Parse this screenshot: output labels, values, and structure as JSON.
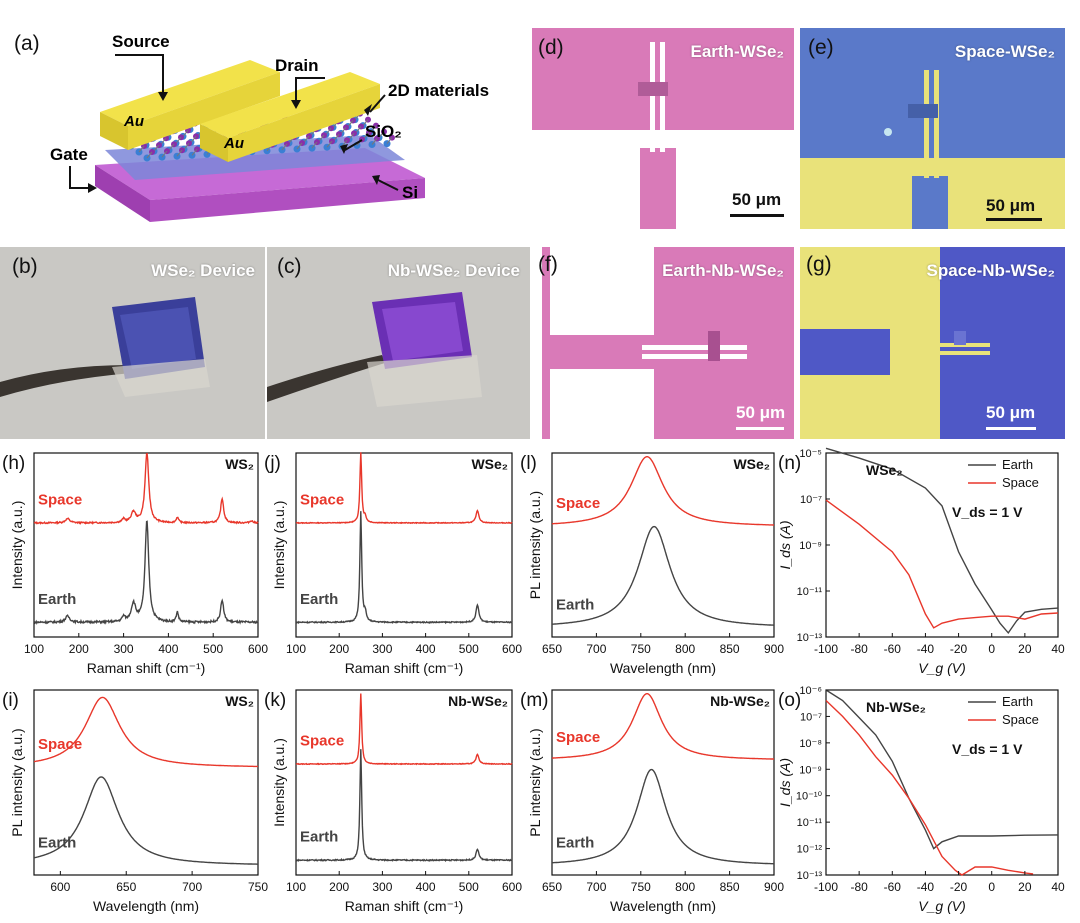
{
  "schematic": {
    "panel_label": "(a)",
    "source": "Source",
    "drain": "Drain",
    "gate": "Gate",
    "au1": "Au",
    "au2": "Au",
    "material": "2D materials",
    "sio2": "SiO₂",
    "si": "Si"
  },
  "photos": {
    "b": {
      "label": "(b)",
      "title": "WSe₂ Device"
    },
    "c": {
      "label": "(c)",
      "title": "Nb-WSe₂ Device"
    }
  },
  "micrographs": {
    "d": {
      "label": "(d)",
      "title": "Earth-WSe₂",
      "scale": "50 μm"
    },
    "e": {
      "label": "(e)",
      "title": "Space-WSe₂",
      "scale": "50 μm"
    },
    "f": {
      "label": "(f)",
      "title": "Earth-Nb-WSe₂",
      "scale": "50 μm"
    },
    "g": {
      "label": "(g)",
      "title": "Space-Nb-WSe₂",
      "scale": "50 μm"
    }
  },
  "colors": {
    "earth": "#444444",
    "space": "#e8372b",
    "gold": "#f2e24a",
    "purple": "#b857d4",
    "pink": "#d97ab8",
    "blue": "#4f58c6"
  },
  "chart_data": [
    {
      "id": "h",
      "label": "(h)",
      "type": "line",
      "title": "WS₂",
      "xlabel": "Raman shift (cm⁻¹)",
      "ylabel": "Intensity (a.u.)",
      "xlim": [
        100,
        600
      ],
      "xticks": [
        "100",
        "200",
        "300",
        "400",
        "500",
        "600"
      ],
      "series": [
        {
          "name": "Space",
          "offset": 0.62,
          "scale": 0.38,
          "noise": 0.02,
          "peaks": [
            [
              175,
              0.06,
              6
            ],
            [
              300,
              0.05,
              4
            ],
            [
              322,
              0.15,
              6
            ],
            [
              352,
              1.0,
              5
            ],
            [
              420,
              0.08,
              3
            ],
            [
              520,
              0.35,
              4
            ],
            [
              585,
              0.03,
              4
            ]
          ]
        },
        {
          "name": "Earth",
          "offset": 0.08,
          "scale": 0.55,
          "noise": 0.02,
          "peaks": [
            [
              175,
              0.06,
              6
            ],
            [
              300,
              0.05,
              4
            ],
            [
              322,
              0.18,
              6
            ],
            [
              352,
              1.0,
              5
            ],
            [
              420,
              0.1,
              3
            ],
            [
              520,
              0.22,
              4
            ]
          ]
        }
      ]
    },
    {
      "id": "j",
      "label": "(j)",
      "type": "line",
      "title": "WSe₂",
      "xlabel": "Raman shift (cm⁻¹)",
      "ylabel": "Intensity (a.u.)",
      "xlim": [
        100,
        600
      ],
      "xticks": [
        "100",
        "200",
        "300",
        "400",
        "500",
        "600"
      ],
      "series": [
        {
          "name": "Space",
          "offset": 0.62,
          "scale": 0.38,
          "noise": 0.01,
          "peaks": [
            [
              250,
              1.0,
              2.5
            ],
            [
              260,
              0.08,
              3
            ],
            [
              520,
              0.18,
              4
            ]
          ]
        },
        {
          "name": "Earth",
          "offset": 0.08,
          "scale": 0.6,
          "noise": 0.01,
          "peaks": [
            [
              250,
              1.0,
              2.5
            ],
            [
              260,
              0.08,
              3
            ],
            [
              520,
              0.16,
              4
            ]
          ]
        }
      ]
    },
    {
      "id": "l",
      "label": "(l)",
      "type": "line",
      "title": "WSe₂",
      "xlabel": "Wavelength (nm)",
      "ylabel": "PL intensity (a.u.)",
      "xlim": [
        650,
        900
      ],
      "xticks": [
        "650",
        "700",
        "750",
        "800",
        "850",
        "900"
      ],
      "series": [
        {
          "name": "Space",
          "offset": 0.6,
          "scale": 0.38,
          "noise": 0,
          "peaks": [
            [
              757,
              1.0,
              22
            ]
          ]
        },
        {
          "name": "Earth",
          "offset": 0.05,
          "scale": 0.55,
          "noise": 0,
          "peaks": [
            [
              765,
              1.0,
              22
            ]
          ]
        }
      ]
    },
    {
      "id": "i",
      "label": "(i)",
      "type": "line",
      "title": "WS₂",
      "xlabel": "Wavelength (nm)",
      "ylabel": "PL intensity (a.u.)",
      "xlim": [
        580,
        750
      ],
      "xticks": [
        "600",
        "650",
        "700",
        "750"
      ],
      "series": [
        {
          "name": "Space",
          "offset": 0.58,
          "scale": 0.38,
          "noise": 0,
          "peaks": [
            [
              632,
              1.0,
              16
            ]
          ]
        },
        {
          "name": "Earth",
          "offset": 0.05,
          "scale": 0.48,
          "noise": 0,
          "peaks": [
            [
              631,
              1.0,
              16
            ]
          ]
        }
      ]
    },
    {
      "id": "k",
      "label": "(k)",
      "type": "line",
      "title": "Nb-WSe₂",
      "xlabel": "Raman shift (cm⁻¹)",
      "ylabel": "Intensity (a.u.)",
      "xlim": [
        100,
        600
      ],
      "xticks": [
        "100",
        "200",
        "300",
        "400",
        "500",
        "600"
      ],
      "series": [
        {
          "name": "Space",
          "offset": 0.6,
          "scale": 0.38,
          "noise": 0.01,
          "peaks": [
            [
              250,
              1.0,
              2.5
            ],
            [
              520,
              0.14,
              4
            ]
          ]
        },
        {
          "name": "Earth",
          "offset": 0.08,
          "scale": 0.6,
          "noise": 0.01,
          "peaks": [
            [
              250,
              1.0,
              2.5
            ],
            [
              520,
              0.1,
              4
            ]
          ]
        }
      ]
    },
    {
      "id": "m",
      "label": "(m)",
      "type": "line",
      "title": "Nb-WSe₂",
      "xlabel": "Wavelength (nm)",
      "ylabel": "PL intensity (a.u.)",
      "xlim": [
        650,
        900
      ],
      "xticks": [
        "650",
        "700",
        "750",
        "800",
        "850",
        "900"
      ],
      "series": [
        {
          "name": "Space",
          "offset": 0.62,
          "scale": 0.36,
          "noise": 0,
          "peaks": [
            [
              757,
              1.0,
              20
            ]
          ]
        },
        {
          "name": "Earth",
          "offset": 0.05,
          "scale": 0.52,
          "noise": 0,
          "peaks": [
            [
              762,
              1.0,
              20
            ]
          ]
        }
      ]
    },
    {
      "id": "n",
      "label": "(n)",
      "type": "line",
      "title": "WSe₂",
      "xlabel": "V_g (V)",
      "ylabel": "I_ds (A)",
      "annotation": "V_ds = 1 V",
      "yscale": "log",
      "xlim": [
        -100,
        40
      ],
      "ylim": [
        1e-13,
        1e-05
      ],
      "xticks": [
        "-100",
        "-80",
        "-60",
        "-40",
        "-20",
        "0",
        "20",
        "40"
      ],
      "yticks": [
        "10⁻¹³",
        "10⁻¹¹",
        "10⁻⁹",
        "10⁻⁷",
        "10⁻⁵"
      ],
      "legend": [
        "Earth",
        "Space"
      ],
      "series": [
        {
          "name": "Earth",
          "points": [
            [
              -100,
              1.6e-05
            ],
            [
              -80,
              6e-06
            ],
            [
              -60,
              2e-06
            ],
            [
              -40,
              3e-07
            ],
            [
              -30,
              5e-08
            ],
            [
              -20,
              5e-10
            ],
            [
              -10,
              2e-11
            ],
            [
              0,
              1.5e-12
            ],
            [
              5,
              4e-13
            ],
            [
              10,
              1.5e-13
            ],
            [
              15,
              5e-13
            ],
            [
              20,
              1.2e-12
            ],
            [
              30,
              1.6e-12
            ],
            [
              40,
              1.8e-12
            ]
          ]
        },
        {
          "name": "Space",
          "points": [
            [
              -100,
              9e-08
            ],
            [
              -80,
              8e-09
            ],
            [
              -60,
              5e-10
            ],
            [
              -50,
              5e-11
            ],
            [
              -40,
              1e-12
            ],
            [
              -35,
              2.5e-13
            ],
            [
              -30,
              4e-13
            ],
            [
              -20,
              6e-13
            ],
            [
              -10,
              7e-13
            ],
            [
              0,
              8e-13
            ],
            [
              10,
              8e-13
            ],
            [
              20,
              6e-13
            ],
            [
              30,
              1e-12
            ],
            [
              40,
              1.1e-12
            ]
          ]
        }
      ]
    },
    {
      "id": "o",
      "label": "(o)",
      "type": "line",
      "title": "Nb-WSe₂",
      "xlabel": "V_g (V)",
      "ylabel": "I_ds (A)",
      "annotation": "V_ds = 1 V",
      "yscale": "log",
      "xlim": [
        -100,
        40
      ],
      "ylim": [
        1e-13,
        1e-06
      ],
      "xticks": [
        "-100",
        "-80",
        "-60",
        "-40",
        "-20",
        "0",
        "20",
        "40"
      ],
      "yticks": [
        "10⁻¹³",
        "10⁻¹²",
        "10⁻¹¹",
        "10⁻¹⁰",
        "10⁻⁹",
        "10⁻⁸",
        "10⁻⁷",
        "10⁻⁶"
      ],
      "legend": [
        "Earth",
        "Space"
      ],
      "series": [
        {
          "name": "Earth",
          "points": [
            [
              -100,
              1e-06
            ],
            [
              -90,
              4e-07
            ],
            [
              -80,
              9e-08
            ],
            [
              -70,
              2e-08
            ],
            [
              -60,
              2e-09
            ],
            [
              -50,
              8e-11
            ],
            [
              -40,
              5e-12
            ],
            [
              -35,
              1e-12
            ],
            [
              -30,
              1.8e-12
            ],
            [
              -20,
              3e-12
            ],
            [
              0,
              3e-12
            ],
            [
              20,
              3.2e-12
            ],
            [
              40,
              3.3e-12
            ]
          ]
        },
        {
          "name": "Space",
          "points": [
            [
              -100,
              4e-07
            ],
            [
              -90,
              1e-07
            ],
            [
              -80,
              2e-08
            ],
            [
              -70,
              3e-09
            ],
            [
              -60,
              6e-10
            ],
            [
              -50,
              8e-11
            ],
            [
              -40,
              8e-12
            ],
            [
              -30,
              5e-13
            ],
            [
              -22,
              1.5e-13
            ],
            [
              -18,
              1e-13
            ],
            [
              -10,
              2e-13
            ],
            [
              0,
              2e-13
            ],
            [
              10,
              1.5e-13
            ],
            [
              20,
              1.2e-13
            ],
            [
              25,
              1.1e-13
            ]
          ]
        }
      ]
    }
  ]
}
